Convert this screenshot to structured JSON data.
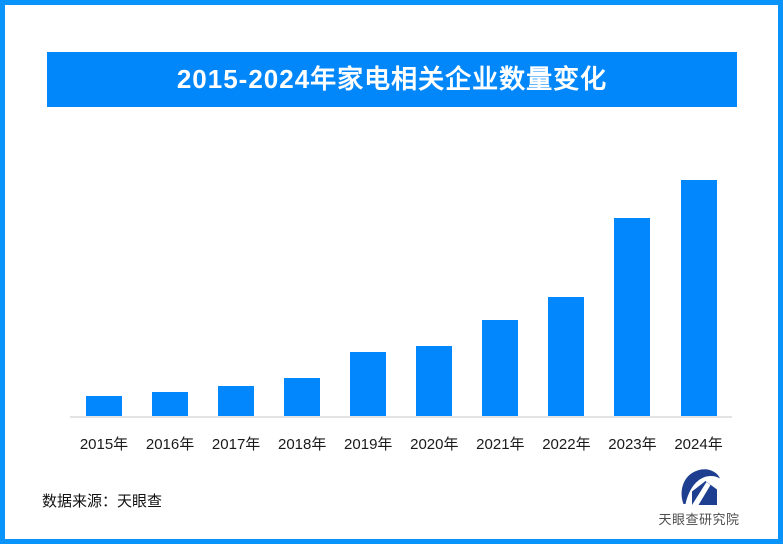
{
  "header": {
    "title": "2015-2024年家电相关企业数量变化",
    "background_color": "#0287FA",
    "text_color": "#FFFFFF"
  },
  "frame": {
    "border_color": "#0994FB",
    "background_color": "#FFFFFF"
  },
  "chart_data": {
    "type": "bar",
    "title": "2015-2024年家电相关企业数量变化",
    "categories": [
      "2015年",
      "2016年",
      "2017年",
      "2018年",
      "2019年",
      "2020年",
      "2021年",
      "2022年",
      "2023年",
      "2024年"
    ],
    "values": [
      20,
      24,
      30,
      38,
      64,
      70,
      96,
      119,
      198,
      236
    ],
    "value_note": "no numeric y-axis shown in image; values are relative bar heights estimated from pixels",
    "xlabel": "",
    "ylabel": "",
    "ylim": [
      0,
      250
    ],
    "grid": false,
    "legend": false,
    "bar_color": "#0287FC",
    "axis_line_color": "#E3E3E3",
    "tick_label_color": "#1A1A1A"
  },
  "footer": {
    "source_label": "数据来源：天眼查"
  },
  "logo": {
    "icon": "tianyancha-logo-mark-icon",
    "label": "天眼查研究院",
    "mark_color": "#1E3F8F",
    "text_color": "#4D4D4D"
  }
}
